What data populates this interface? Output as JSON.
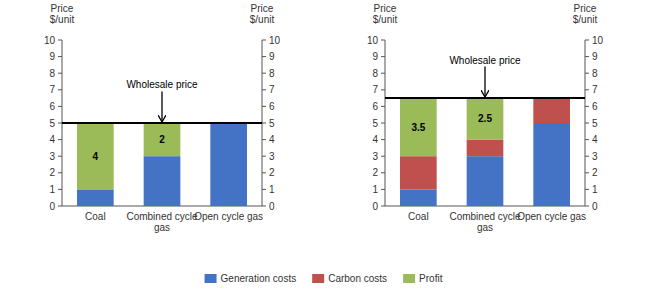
{
  "chart_data": [
    {
      "type": "bar",
      "stacked": true,
      "categories": [
        "Coal",
        "Combined cycle\ngas",
        "Open cycle gas"
      ],
      "series": [
        {
          "name": "Generation costs",
          "color": "#4472C4",
          "values": [
            1,
            3,
            5
          ]
        },
        {
          "name": "Carbon costs",
          "color": "#C0504D",
          "values": [
            0,
            0,
            0
          ]
        },
        {
          "name": "Profit",
          "color": "#9BBB59",
          "values": [
            4,
            2,
            0
          ],
          "data_labels": true
        }
      ],
      "ylabel": "Price\n$/unit",
      "y2label": "Price\n$/unit",
      "ylim": [
        0,
        10
      ],
      "yticks": [
        0,
        1,
        2,
        3,
        4,
        5,
        6,
        7,
        8,
        9,
        10
      ],
      "y2lim": [
        0,
        10
      ],
      "y2ticks": [
        0,
        1,
        2,
        3,
        4,
        5,
        6,
        7,
        8,
        9,
        10
      ],
      "annotations": [
        {
          "text": "Wholesale price",
          "value": 5,
          "category": "Combined cycle\ngas"
        }
      ],
      "legend": "bottom"
    },
    {
      "type": "bar",
      "stacked": true,
      "categories": [
        "Coal",
        "Combined cycle\ngas",
        "Open cycle gas"
      ],
      "series": [
        {
          "name": "Generation costs",
          "color": "#4472C4",
          "values": [
            1,
            3,
            5
          ]
        },
        {
          "name": "Carbon costs",
          "color": "#C0504D",
          "values": [
            2,
            1,
            1.5
          ]
        },
        {
          "name": "Profit",
          "color": "#9BBB59",
          "values": [
            3.5,
            2.5,
            0
          ],
          "data_labels": true
        }
      ],
      "ylabel": "Price\n$/unit",
      "y2label": "Price\n$/unit",
      "ylim": [
        0,
        10
      ],
      "yticks": [
        0,
        1,
        2,
        3,
        4,
        5,
        6,
        7,
        8,
        9,
        10
      ],
      "y2lim": [
        0,
        10
      ],
      "y2ticks": [
        0,
        1,
        2,
        3,
        4,
        5,
        6,
        7,
        8,
        9,
        10
      ],
      "annotations": [
        {
          "text": "Wholesale price",
          "value": 6.5,
          "category": "Combined cycle\ngas"
        }
      ],
      "legend": "bottom"
    }
  ]
}
